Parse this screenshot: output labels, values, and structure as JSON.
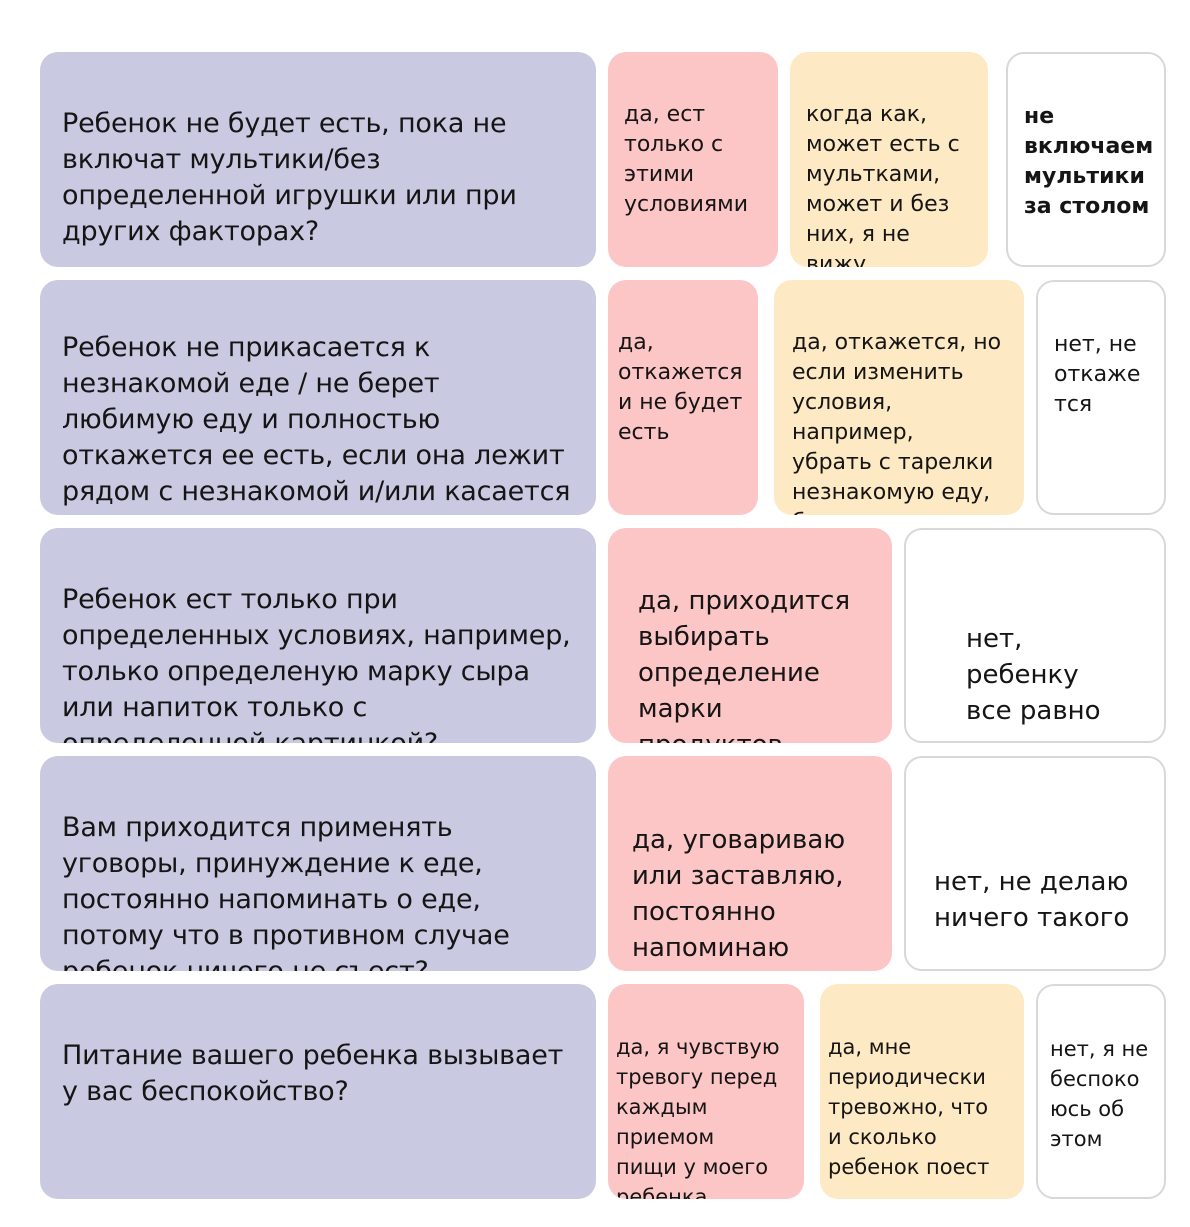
{
  "rows": [
    {
      "question": "Ребенок не будет есть, пока не включат мультики/без определенной игрушки или при других факторах?",
      "answers": [
        "да, ест\nтолько с\nэтими\nусловиями",
        "когда как,\nможет есть с\nмультками,\nможет и без\nних, я не вижу\nразницы",
        "не\nвключаем\nмультики\nза столом"
      ]
    },
    {
      "question": "Ребенок не прикасается к незнакомой еде / не берет любимую еду и полностью откажется ее есть, если она лежит рядом с незнакомой и/или касается ее?",
      "answers": [
        "да,\nоткажется\nи не будет\nесть",
        "да, откажется, но\nесли изменить\nусловия,\nнапример,\nубрать с тарелки\nнезнакомую еду,\nбудет есть",
        "нет, не\nоткаже\nтся"
      ]
    },
    {
      "question": "Ребенок ест только при определенных условиях, например, только определеную марку сыра или напиток только с определенной картинкой?",
      "answers": [
        "да, приходится\nвыбирать\nопределение\nмарки\nпродуктов",
        "нет,\nребенку\nвсе равно"
      ]
    },
    {
      "question": "Вам приходится применять уговоры, принуждение к еде, постоянно напоминать о еде, потому что в противном случае ребенок ничего не съест?",
      "answers": [
        "да, уговариваю\nили заставляю,\nпостоянно\nнапоминаю",
        "нет, не делаю\nничего такого"
      ]
    },
    {
      "question": "Питание вашего ребенка вызывает у вас беспокойство?",
      "answers": [
        "да, я чувствую\nтревогу перед\nкаждым\nприемом\nпищи у моего\nребенка",
        "да, мне\nпериодически\nтревожно, что\nи сколько\nребенок поест",
        "нет, я не\nбеспоко\nюсь об\nэтом"
      ]
    }
  ]
}
